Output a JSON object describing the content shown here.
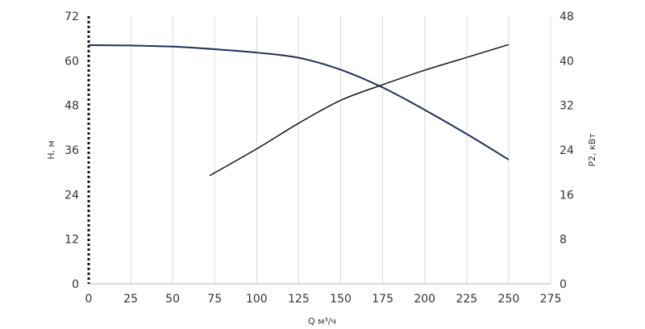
{
  "chart_data": {
    "type": "line",
    "xlabel": "Q м³/ч",
    "ylabel_left": "H, м",
    "ylabel_right": "P2, кВт",
    "xlim": [
      0,
      275
    ],
    "ylim_left": [
      0,
      72
    ],
    "ylim_right": [
      0,
      48
    ],
    "x_ticks": [
      0,
      25,
      50,
      75,
      100,
      125,
      150,
      175,
      200,
      225,
      250,
      275
    ],
    "y_left_ticks": [
      0,
      12,
      24,
      36,
      48,
      60,
      72
    ],
    "y_right_ticks": [
      0,
      8,
      16,
      24,
      32,
      40,
      48
    ],
    "grid": "vertical",
    "series": [
      {
        "axis": "left",
        "color": "#1f2d5c",
        "x": [
          0,
          25,
          50,
          75,
          100,
          125,
          150,
          175,
          200,
          225,
          250
        ],
        "y": [
          64.2,
          64.1,
          63.8,
          63.1,
          62.2,
          60.8,
          57.6,
          52.8,
          46.8,
          40.3,
          33.4
        ]
      },
      {
        "axis": "right",
        "color": "#111111",
        "x": [
          72,
          100,
          125,
          150,
          175,
          200,
          225,
          250
        ],
        "y": [
          19.4,
          24.2,
          28.8,
          32.9,
          35.7,
          38.3,
          40.6,
          42.9
        ]
      }
    ]
  }
}
